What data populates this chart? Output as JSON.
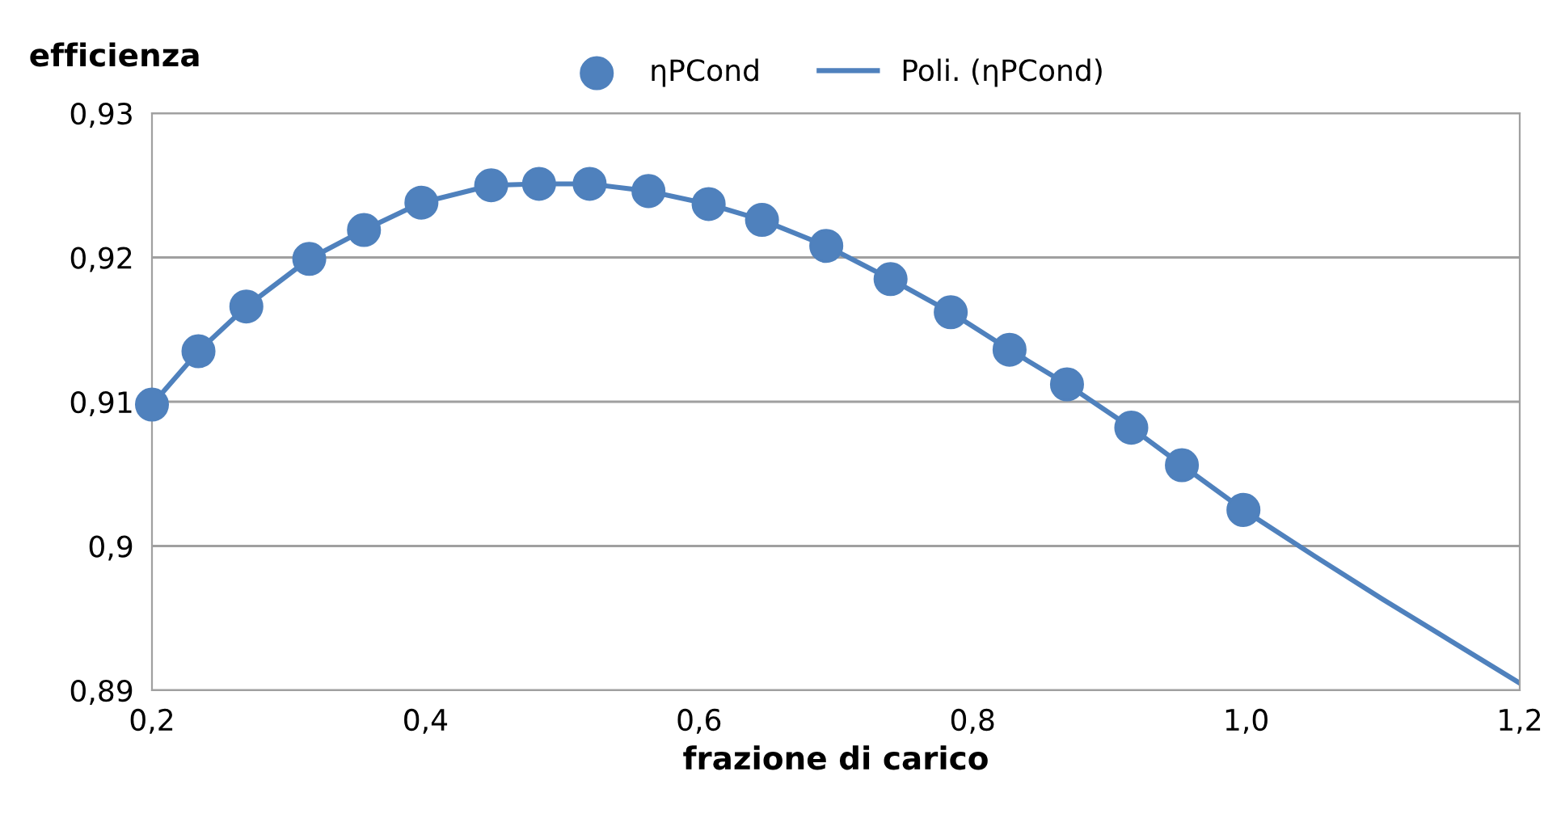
{
  "chart_data": {
    "type": "scatter",
    "xlabel": "frazione di carico",
    "ylabel": "efficienza",
    "xlim": [
      0.2,
      1.2
    ],
    "ylim": [
      0.89,
      0.93
    ],
    "xticks": [
      {
        "value": 0.2,
        "label": "0,2"
      },
      {
        "value": 0.4,
        "label": "0,4"
      },
      {
        "value": 0.6,
        "label": "0,6"
      },
      {
        "value": 0.8,
        "label": "0,8"
      },
      {
        "value": 1.0,
        "label": "1,0"
      },
      {
        "value": 1.2,
        "label": "1,2"
      }
    ],
    "yticks": [
      {
        "value": 0.89,
        "label": "0,89"
      },
      {
        "value": 0.9,
        "label": "0,9"
      },
      {
        "value": 0.91,
        "label": "0,91"
      },
      {
        "value": 0.92,
        "label": "0,92"
      },
      {
        "value": 0.93,
        "label": "0,93"
      }
    ],
    "grid": "y",
    "legend": "top",
    "series": [
      {
        "name": "ηPCond",
        "marker": "circle",
        "color": "#4f81bd",
        "x": [
          0.2,
          0.234,
          0.269,
          0.315,
          0.355,
          0.397,
          0.448,
          0.483,
          0.52,
          0.563,
          0.607,
          0.646,
          0.693,
          0.74,
          0.784,
          0.827,
          0.869,
          0.916,
          0.953,
          0.998
        ],
        "values": [
          0.9098,
          0.9135,
          0.9166,
          0.9199,
          0.9219,
          0.9238,
          0.925,
          0.9251,
          0.9251,
          0.9246,
          0.9237,
          0.9226,
          0.9208,
          0.9185,
          0.9162,
          0.9136,
          0.9112,
          0.9082,
          0.9056,
          0.9025
        ]
      },
      {
        "name": "Poli. (ηPCond)",
        "type": "line",
        "marker": "none",
        "color": "#4f81bd",
        "x": [
          0.2,
          0.234,
          0.269,
          0.315,
          0.355,
          0.397,
          0.448,
          0.483,
          0.52,
          0.563,
          0.607,
          0.646,
          0.693,
          0.74,
          0.784,
          0.827,
          0.869,
          0.916,
          0.953,
          0.998,
          1.05,
          1.1,
          1.15,
          1.2
        ],
        "values": [
          0.9098,
          0.9135,
          0.9166,
          0.9199,
          0.9219,
          0.9238,
          0.925,
          0.9251,
          0.9251,
          0.9246,
          0.9237,
          0.9226,
          0.9208,
          0.9185,
          0.9162,
          0.9136,
          0.9112,
          0.9082,
          0.9056,
          0.9025,
          0.8993,
          0.8963,
          0.8934,
          0.8905
        ]
      }
    ]
  }
}
